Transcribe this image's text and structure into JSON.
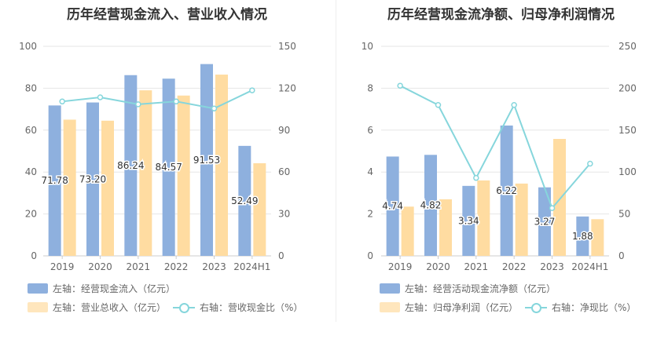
{
  "chart_data": [
    {
      "type": "bar",
      "title": "历年经营现金流入、营业收入情况",
      "categories": [
        "2019",
        "2020",
        "2021",
        "2022",
        "2023",
        "2024H1"
      ],
      "y_left": {
        "ticks": [
          "0",
          "20",
          "40",
          "60",
          "80",
          "100"
        ],
        "range": [
          0,
          100
        ]
      },
      "y_right": {
        "ticks": [
          "0",
          "30",
          "60",
          "90",
          "120",
          "150"
        ],
        "range": [
          0,
          150
        ]
      },
      "series": [
        {
          "name": "左轴：经营现金流入（亿元）",
          "axis": "left",
          "kind": "bar",
          "values": [
            71.78,
            73.2,
            86.24,
            84.57,
            91.53,
            52.49
          ],
          "labels": [
            "71.78",
            "73.20",
            "86.24",
            "84.57",
            "91.53",
            "52.49"
          ],
          "color": "#8eb0de"
        },
        {
          "name": "左轴：营业总收入（亿元）",
          "axis": "left",
          "kind": "bar",
          "values": [
            65,
            64.5,
            79,
            76.5,
            86.5,
            44.2
          ],
          "color": "#ffdca1"
        },
        {
          "name": "右轴：营收现金比（%）",
          "axis": "right",
          "kind": "line",
          "values": [
            110.5,
            113.5,
            108.5,
            110.5,
            105.5,
            118.5
          ],
          "color": "#86d6dc"
        }
      ],
      "grid": true
    },
    {
      "type": "bar",
      "title": "历年经营现金流净额、归母净利润情况",
      "categories": [
        "2019",
        "2020",
        "2021",
        "2022",
        "2023",
        "2024H1"
      ],
      "y_left": {
        "ticks": [
          "0",
          "2",
          "4",
          "6",
          "8",
          "10"
        ],
        "range": [
          0,
          10
        ]
      },
      "y_right": {
        "ticks": [
          "0",
          "50",
          "100",
          "150",
          "200",
          "250"
        ],
        "range": [
          0,
          250
        ]
      },
      "series": [
        {
          "name": "左轴：经营活动现金流净额（亿元）",
          "axis": "left",
          "kind": "bar",
          "values": [
            4.74,
            4.82,
            3.34,
            6.22,
            3.27,
            1.88
          ],
          "labels": [
            "4.74",
            "4.82",
            "3.34",
            "6.22",
            "3.27",
            "1.88"
          ],
          "color": "#8eb0de"
        },
        {
          "name": "左轴：归母净利润（亿元）",
          "axis": "left",
          "kind": "bar",
          "values": [
            2.35,
            2.7,
            3.6,
            3.45,
            5.58,
            1.75
          ],
          "color": "#ffdca1"
        },
        {
          "name": "右轴：净现比（%）",
          "axis": "right",
          "kind": "line",
          "values": [
            203,
            180,
            93,
            180,
            57,
            110
          ],
          "color": "#86d6dc"
        }
      ],
      "grid": true
    }
  ],
  "legend": {
    "left": [
      "左轴：经营现金流入（亿元）",
      "左轴：营业总收入（亿元）",
      "右轴：营收现金比（%）"
    ],
    "right": [
      "左轴：经营活动现金流净额（亿元）",
      "左轴：归母净利润（亿元）",
      "右轴：净现比（%）"
    ]
  },
  "colors": {
    "bar_primary": "#8eb0de",
    "bar_secondary": "#ffdca1",
    "line": "#86d6dc",
    "grid": "#e6e6e6",
    "axis_text": "#666666"
  }
}
